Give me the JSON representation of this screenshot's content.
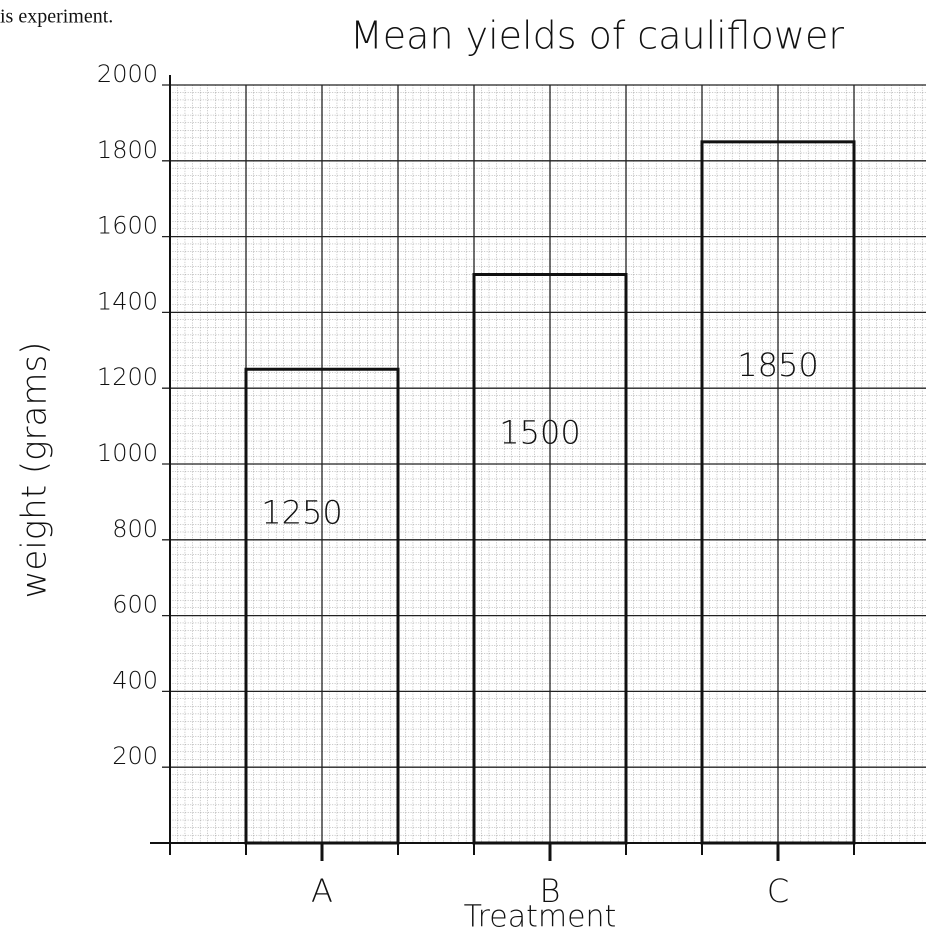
{
  "page_text": "is experiment.",
  "chart_data": {
    "type": "bar",
    "title": "Mean yields of cauliflower",
    "x_label": "Treatment",
    "y_label": "weight (grams)",
    "categories": [
      "A",
      "B",
      "C"
    ],
    "values": [
      1250,
      1500,
      1850
    ],
    "color": "#111111",
    "ylim": [
      0,
      2000
    ],
    "yticks": [
      200,
      400,
      600,
      800,
      1000,
      1200,
      1400,
      1600,
      1800,
      2000
    ],
    "grid": true
  }
}
